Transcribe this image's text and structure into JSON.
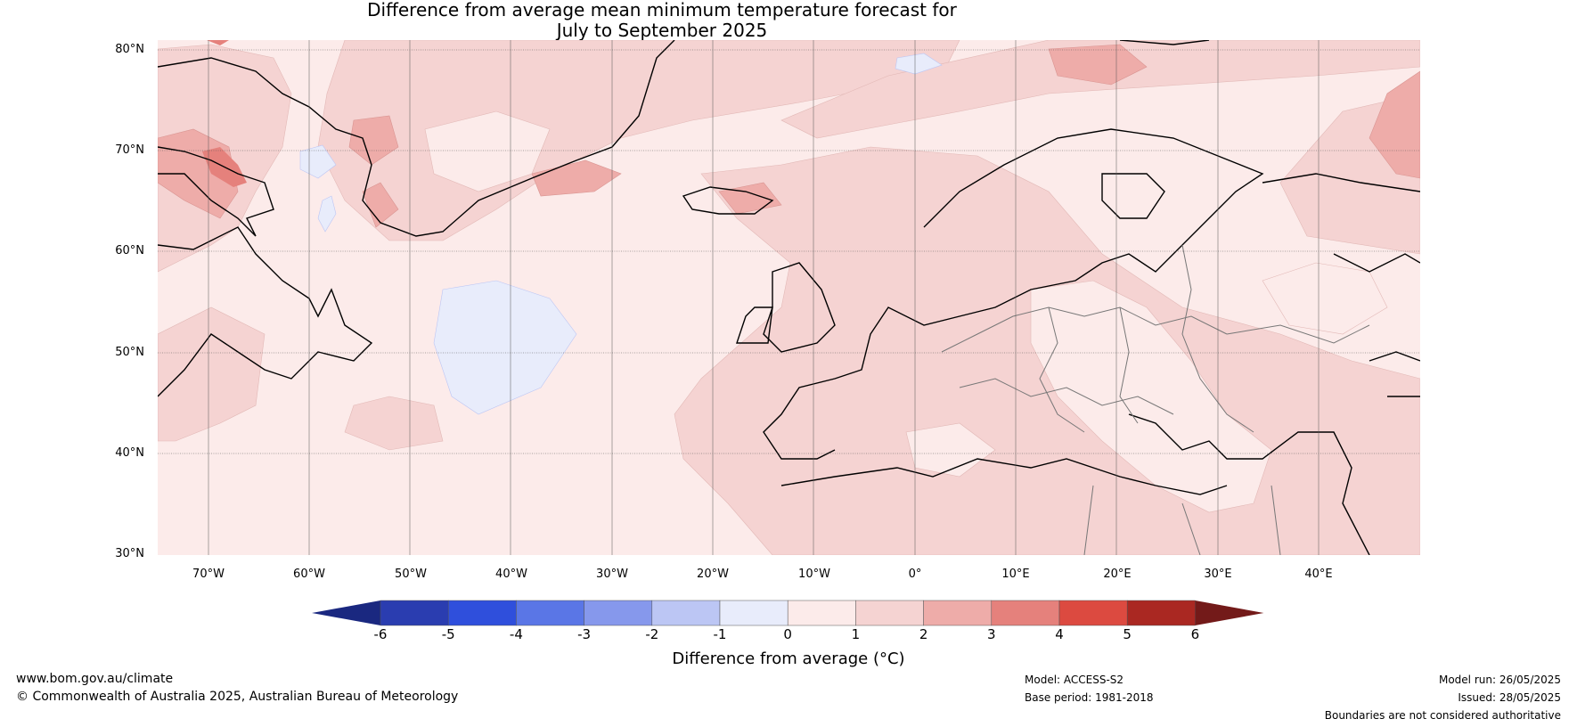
{
  "title": {
    "line1": "Difference from average mean minimum temperature forecast for",
    "line2": "July to September 2025"
  },
  "axes": {
    "lat_labels": [
      "80°N",
      "70°N",
      "60°N",
      "50°N",
      "40°N",
      "30°N"
    ],
    "lon_labels": [
      "70°W",
      "60°W",
      "50°W",
      "40°W",
      "30°W",
      "20°W",
      "10°W",
      "0°",
      "10°E",
      "20°E",
      "30°E",
      "40°E"
    ]
  },
  "colorbar": {
    "ticks": [
      "-6",
      "-5",
      "-4",
      "-3",
      "-2",
      "-1",
      "0",
      "1",
      "2",
      "3",
      "4",
      "5",
      "6"
    ],
    "colors": [
      "#2a3db0",
      "#2f4fdc",
      "#5a76e6",
      "#8698ec",
      "#bcc6f4",
      "#e8ecfb",
      "#fcebea",
      "#f5d3d2",
      "#eeaca9",
      "#e5817c",
      "#dc4a40",
      "#aa2822"
    ],
    "under_color": "#1a2880",
    "over_color": "#731a19",
    "label": "Difference from average (°C)"
  },
  "footer": {
    "website": "www.bom.gov.au/climate",
    "copyright": "© Commonwealth of Australia 2025, Australian Bureau of Meteorology",
    "model": "Model: ACCESS-S2",
    "base_period": "Base period: 1981-2018",
    "model_run": "Model run: 26/05/2025",
    "issued": "Issued: 28/05/2025",
    "disclaimer": "Boundaries are not considered authoritative"
  }
}
